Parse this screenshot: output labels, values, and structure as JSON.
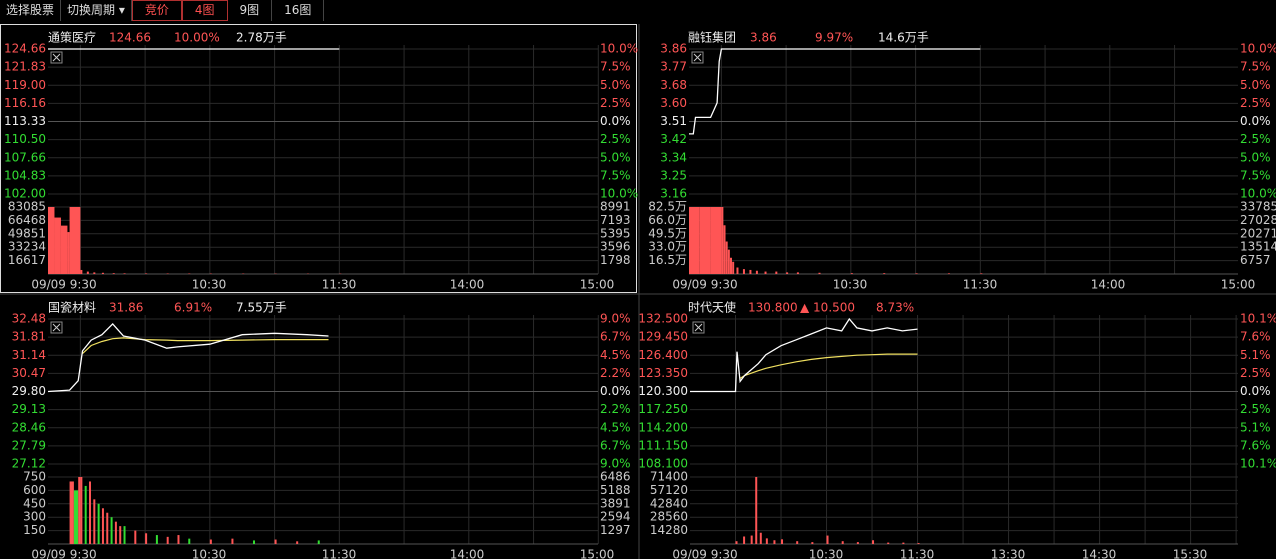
{
  "toolbar": [
    "选择股票",
    "切换周期 ▾",
    "竞价",
    "4图",
    "9图",
    "16图"
  ],
  "panels": [
    {
      "header": [
        "通策医疗",
        "124.66",
        "10.00%",
        "2.78万手"
      ],
      "price_ticks": [
        "124.66",
        "121.83",
        "119.00",
        "116.16",
        "113.33",
        "110.50",
        "107.66",
        "104.83",
        "102.00"
      ],
      "pct_ticks": [
        "10.0%",
        "7.5%",
        "5.0%",
        "2.5%",
        "0.0%",
        "2.5%",
        "5.0%",
        "7.5%",
        "10.0%"
      ],
      "vol_ticks": [
        "83085",
        "66468",
        "49851",
        "33234",
        "16617"
      ],
      "vol_right_ticks": [
        "8991",
        "7193",
        "5395",
        "3596",
        "1798"
      ],
      "time_labels": [
        "09/09 9:30",
        "10:30",
        "11:30",
        "14:00",
        "15:00"
      ],
      "line": {
        "x": [
          "9:15",
          "9:30",
          "10:00",
          "10:30",
          "11:00",
          "11:30"
        ],
        "price": [
          124.66,
          124.66,
          124.66,
          124.66,
          124.66,
          124.66
        ]
      },
      "bars": {
        "x": [
          "9:15",
          "9:18",
          "9:21",
          "9:24",
          "9:25",
          "9:30",
          "9:33",
          "9:36",
          "9:40",
          "9:45",
          "9:50",
          "10:00",
          "10:10",
          "10:20",
          "10:30",
          "10:45",
          "11:00",
          "11:15",
          "11:30"
        ],
        "values": [
          83085,
          70000,
          60000,
          52000,
          83085,
          5000,
          3000,
          2000,
          1500,
          1000,
          800,
          700,
          600,
          600,
          500,
          500,
          400,
          400,
          400
        ]
      }
    },
    {
      "header": [
        "融钰集团",
        "3.86",
        "9.97%",
        "14.6万手"
      ],
      "price_ticks": [
        "3.86",
        "3.77",
        "3.68",
        "3.60",
        "3.51",
        "3.42",
        "3.34",
        "3.25",
        "3.16"
      ],
      "pct_ticks": [
        "10.0%",
        "7.5%",
        "5.0%",
        "2.5%",
        "0.0%",
        "2.5%",
        "5.0%",
        "7.5%",
        "10.0%"
      ],
      "vol_ticks": [
        "82.5万",
        "66.0万",
        "49.5万",
        "33.0万",
        "16.5万"
      ],
      "vol_right_ticks": [
        "33785",
        "27028",
        "20271",
        "13514",
        "6757"
      ],
      "time_labels": [
        "09/09 9:30",
        "10:30",
        "11:30",
        "14:00",
        "15:00"
      ],
      "line": {
        "x": [
          "9:15",
          "9:17",
          "9:18",
          "9:25",
          "9:28",
          "9:29",
          "9:30",
          "10:00",
          "11:00",
          "11:30"
        ],
        "price": [
          3.45,
          3.45,
          3.53,
          3.53,
          3.6,
          3.8,
          3.86,
          3.86,
          3.86,
          3.86
        ]
      },
      "bars": {
        "x": [
          "9:15",
          "9:20",
          "9:25",
          "9:30",
          "9:31",
          "9:32",
          "9:33",
          "9:34",
          "9:35",
          "9:37",
          "9:40",
          "9:43",
          "9:46",
          "9:50",
          "9:55",
          "10:00",
          "10:05",
          "10:15",
          "10:30",
          "10:45",
          "11:00",
          "11:15",
          "11:30"
        ],
        "values": [
          82.5,
          82.5,
          82.5,
          82.5,
          60,
          40,
          30,
          20,
          15,
          8,
          6,
          5,
          4,
          3,
          3,
          2,
          2,
          1.5,
          1,
          1,
          0.8,
          0.8,
          0.8
        ]
      }
    },
    {
      "header": [
        "国瓷材料",
        "31.86",
        "6.91%",
        "7.55万手"
      ],
      "price_ticks": [
        "32.48",
        "31.81",
        "31.14",
        "30.47",
        "29.80",
        "29.13",
        "28.46",
        "27.79",
        "27.12"
      ],
      "pct_ticks": [
        "9.0%",
        "6.7%",
        "4.5%",
        "2.2%",
        "0.0%",
        "2.2%",
        "4.5%",
        "6.7%",
        "9.0%"
      ],
      "vol_ticks": [
        "750",
        "600",
        "450",
        "300",
        "150"
      ],
      "vol_right_ticks": [
        "6486",
        "5188",
        "3891",
        "2594",
        "1297"
      ],
      "time_labels": [
        "09/09 9:30",
        "10:30",
        "11:30",
        "14:00",
        "15:00"
      ],
      "line": {
        "x": [
          "9:15",
          "9:25",
          "9:29",
          "9:31",
          "9:35",
          "9:40",
          "9:45",
          "9:50",
          "10:00",
          "10:10",
          "10:15",
          "10:30",
          "10:45",
          "11:00",
          "11:15",
          "11:25"
        ],
        "price": [
          29.8,
          29.85,
          30.2,
          31.3,
          31.7,
          31.9,
          32.3,
          31.85,
          31.7,
          31.4,
          31.45,
          31.55,
          31.9,
          31.95,
          31.9,
          31.85
        ],
        "avg": [
          null,
          null,
          null,
          31.2,
          31.5,
          31.65,
          31.75,
          31.78,
          31.72,
          31.7,
          31.68,
          31.68,
          31.7,
          31.72,
          31.72,
          31.72
        ]
      },
      "bars": {
        "x": [
          "9:25",
          "9:27",
          "9:29",
          "9:30",
          "9:32",
          "9:34",
          "9:36",
          "9:38",
          "9:40",
          "9:42",
          "9:44",
          "9:46",
          "9:48",
          "9:50",
          "9:55",
          "10:00",
          "10:05",
          "10:10",
          "10:15",
          "10:20",
          "10:30",
          "10:40",
          "10:50",
          "11:00",
          "11:10",
          "11:20"
        ],
        "values": [
          700,
          600,
          750,
          750,
          650,
          700,
          500,
          450,
          400,
          350,
          300,
          250,
          200,
          200,
          150,
          120,
          100,
          80,
          100,
          60,
          50,
          60,
          40,
          50,
          30,
          40
        ]
      }
    },
    {
      "header": [
        "时代天使",
        "130.800",
        "▲ 10.500",
        "8.73%"
      ],
      "price_ticks": [
        "132.500",
        "129.450",
        "126.400",
        "123.350",
        "120.300",
        "117.250",
        "114.200",
        "111.150",
        "108.100"
      ],
      "pct_ticks": [
        "10.1%",
        "7.6%",
        "5.1%",
        "2.5%",
        "0.0%",
        "2.5%",
        "5.1%",
        "7.6%",
        "10.1%"
      ],
      "vol_ticks": [
        "71400",
        "57120",
        "42840",
        "28560",
        "14280"
      ],
      "time_labels": [
        "09/09 9:30",
        "10:30",
        "11:30",
        "13:30",
        "14:30",
        "15:30"
      ],
      "line": {
        "x": [
          "9:00",
          "9:30",
          "9:31",
          "9:33",
          "9:36",
          "9:45",
          "9:50",
          "10:00",
          "10:10",
          "10:20",
          "10:30",
          "10:40",
          "10:45",
          "10:50",
          "11:00",
          "11:10",
          "11:20",
          "11:30"
        ],
        "price": [
          120.3,
          120.3,
          127,
          122,
          123,
          125,
          126.5,
          128,
          129,
          130,
          131,
          130.5,
          132.5,
          131,
          130.5,
          131,
          130.5,
          130.8
        ],
        "avg": [
          null,
          null,
          null,
          122.5,
          123,
          123.8,
          124.2,
          124.8,
          125.3,
          125.7,
          126,
          126.2,
          126.3,
          126.4,
          126.5,
          126.6,
          126.6,
          126.6
        ]
      },
      "bars": {
        "x": [
          "9:30",
          "9:35",
          "9:40",
          "9:43",
          "9:46",
          "9:50",
          "9:55",
          "10:00",
          "10:10",
          "10:20",
          "10:30",
          "10:40",
          "10:50",
          "11:00",
          "11:10",
          "11:20",
          "11:30"
        ],
        "values": [
          3000,
          8000,
          9000,
          71400,
          12000,
          6000,
          4000,
          5000,
          3000,
          2000,
          9000,
          3000,
          2000,
          4000,
          1500,
          1500,
          1000
        ]
      }
    }
  ]
}
